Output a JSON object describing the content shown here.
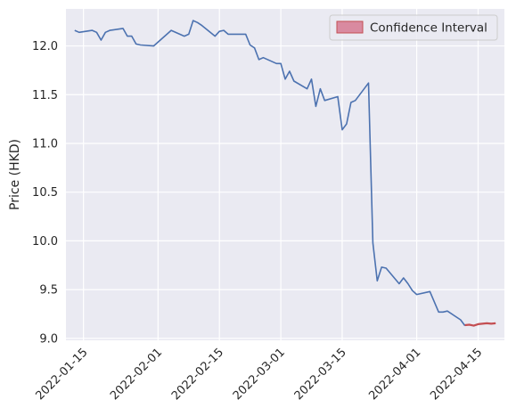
{
  "chart_data": {
    "type": "line",
    "title": "",
    "xlabel": "",
    "ylabel": "Price (HKD)",
    "ylim": [
      8.98,
      12.38
    ],
    "xlim": [
      "2022-01-11",
      "2022-04-21"
    ],
    "yticks": [
      9.0,
      9.5,
      10.0,
      10.5,
      11.0,
      11.5,
      12.0
    ],
    "ytick_labels": [
      "9.0",
      "9.5",
      "10.0",
      "10.5",
      "11.0",
      "11.5",
      "12.0"
    ],
    "xticks": [
      "2022-01-15",
      "2022-02-01",
      "2022-02-15",
      "2022-03-01",
      "2022-03-15",
      "2022-04-01",
      "2022-04-15"
    ],
    "xtick_labels": [
      "2022-01-15",
      "2022-02-01",
      "2022-02-15",
      "2022-03-01",
      "2022-03-15",
      "2022-04-01",
      "2022-04-15"
    ],
    "grid": true,
    "legend_position": "top-right",
    "legend": [
      {
        "label": "Confidence Interval",
        "swatch": "#d98aa0"
      }
    ],
    "series": [
      {
        "color": "#4c72b0",
        "points": [
          [
            "2022-01-13",
            12.16
          ],
          [
            "2022-01-14",
            12.14
          ],
          [
            "2022-01-17",
            12.16
          ],
          [
            "2022-01-18",
            12.14
          ],
          [
            "2022-01-19",
            12.06
          ],
          [
            "2022-01-20",
            12.14
          ],
          [
            "2022-01-21",
            12.16
          ],
          [
            "2022-01-24",
            12.18
          ],
          [
            "2022-01-25",
            12.1
          ],
          [
            "2022-01-26",
            12.1
          ],
          [
            "2022-01-27",
            12.02
          ],
          [
            "2022-01-28",
            12.01
          ],
          [
            "2022-01-31",
            12.0
          ],
          [
            "2022-02-04",
            12.16
          ],
          [
            "2022-02-07",
            12.1
          ],
          [
            "2022-02-08",
            12.12
          ],
          [
            "2022-02-09",
            12.26
          ],
          [
            "2022-02-10",
            12.24
          ],
          [
            "2022-02-11",
            12.21
          ],
          [
            "2022-02-14",
            12.1
          ],
          [
            "2022-02-15",
            12.15
          ],
          [
            "2022-02-16",
            12.16
          ],
          [
            "2022-02-17",
            12.12
          ],
          [
            "2022-02-18",
            12.12
          ],
          [
            "2022-02-21",
            12.12
          ],
          [
            "2022-02-22",
            12.01
          ],
          [
            "2022-02-23",
            11.98
          ],
          [
            "2022-02-24",
            11.86
          ],
          [
            "2022-02-25",
            11.88
          ],
          [
            "2022-02-28",
            11.82
          ],
          [
            "2022-03-01",
            11.82
          ],
          [
            "2022-03-02",
            11.66
          ],
          [
            "2022-03-03",
            11.74
          ],
          [
            "2022-03-04",
            11.64
          ],
          [
            "2022-03-07",
            11.56
          ],
          [
            "2022-03-08",
            11.66
          ],
          [
            "2022-03-09",
            11.38
          ],
          [
            "2022-03-10",
            11.56
          ],
          [
            "2022-03-11",
            11.44
          ],
          [
            "2022-03-14",
            11.48
          ],
          [
            "2022-03-15",
            11.14
          ],
          [
            "2022-03-16",
            11.2
          ],
          [
            "2022-03-17",
            11.42
          ],
          [
            "2022-03-18",
            11.44
          ],
          [
            "2022-03-21",
            11.62
          ],
          [
            "2022-03-22",
            9.98
          ],
          [
            "2022-03-23",
            9.59
          ],
          [
            "2022-03-24",
            9.73
          ],
          [
            "2022-03-25",
            9.72
          ],
          [
            "2022-03-28",
            9.56
          ],
          [
            "2022-03-29",
            9.62
          ],
          [
            "2022-03-30",
            9.56
          ],
          [
            "2022-03-31",
            9.49
          ],
          [
            "2022-04-01",
            9.45
          ],
          [
            "2022-04-04",
            9.48
          ],
          [
            "2022-04-06",
            9.27
          ],
          [
            "2022-04-07",
            9.27
          ],
          [
            "2022-04-08",
            9.28
          ],
          [
            "2022-04-11",
            9.19
          ],
          [
            "2022-04-12",
            9.13
          ]
        ]
      },
      {
        "color": "#c44e52",
        "points": [
          [
            "2022-04-12",
            9.135
          ],
          [
            "2022-04-13",
            9.14
          ],
          [
            "2022-04-14",
            9.13
          ],
          [
            "2022-04-15",
            9.145
          ],
          [
            "2022-04-16",
            9.15
          ],
          [
            "2022-04-17",
            9.155
          ],
          [
            "2022-04-18",
            9.15
          ],
          [
            "2022-04-19",
            9.155
          ]
        ]
      }
    ]
  }
}
